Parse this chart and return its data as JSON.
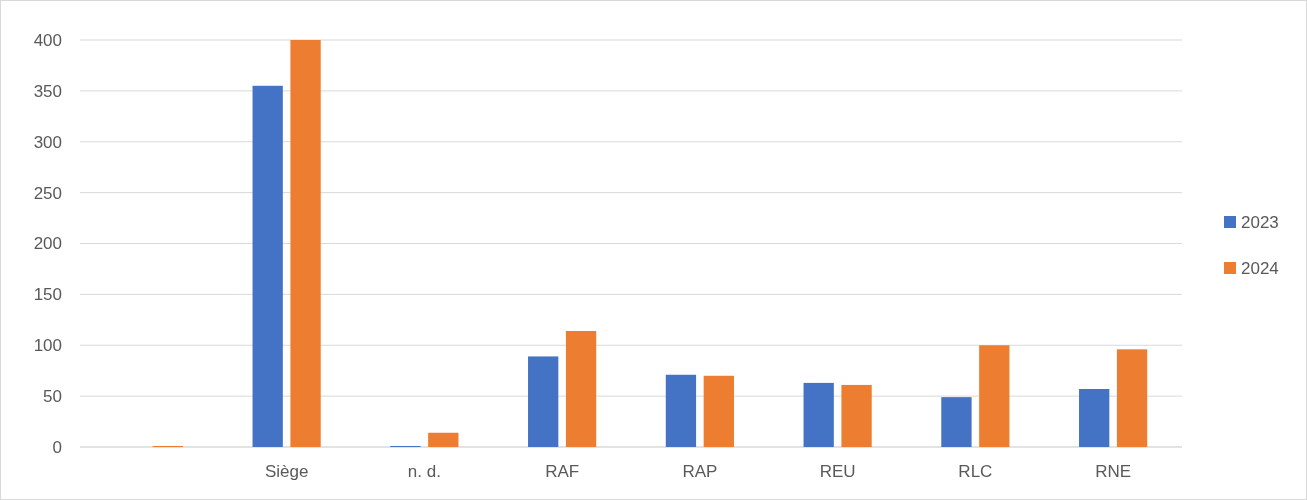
{
  "chart_data": {
    "type": "bar",
    "categories": [
      null,
      "Siège",
      "n. d.",
      "RAF",
      "RAP",
      "REU",
      "RLC",
      "RNE"
    ],
    "series": [
      {
        "name": "2023",
        "color": "#4472c4",
        "values": [
          0,
          355,
          1,
          89,
          71,
          63,
          49,
          57
        ]
      },
      {
        "name": "2024",
        "color": "#ed7d31",
        "values": [
          1,
          400,
          14,
          114,
          70,
          61,
          100,
          96
        ]
      }
    ],
    "ylim": [
      0,
      400
    ],
    "yticks": [
      0,
      50,
      100,
      150,
      200,
      250,
      300,
      350,
      400
    ],
    "grid": "y",
    "legend": "right"
  }
}
